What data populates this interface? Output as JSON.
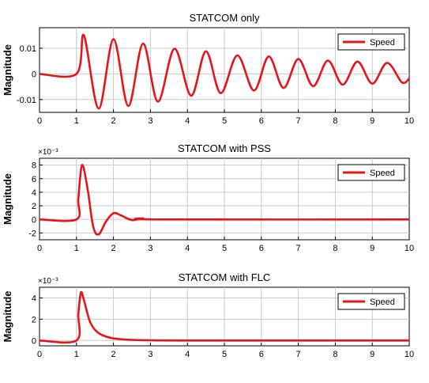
{
  "chart_data": [
    {
      "type": "line",
      "title": "STATCOM only",
      "ylabel": "Magnitude",
      "xlabel": "",
      "xlim": [
        0,
        10
      ],
      "ylim": [
        -0.015,
        0.018
      ],
      "xticks": [
        "0",
        "1",
        "2",
        "3",
        "4",
        "5",
        "6",
        "7",
        "8",
        "9",
        "10"
      ],
      "yticks": [
        {
          "value": 0.01,
          "label": "0.01"
        },
        {
          "value": 0,
          "label": "0"
        },
        {
          "value": -0.01,
          "label": "-0.01"
        }
      ],
      "multiplier": "",
      "grid": true,
      "legend": {
        "placement": "top-right",
        "entries": [
          "Speed"
        ]
      },
      "color": "#e8141b",
      "series": [
        {
          "name": "Speed",
          "x": [
            0,
            1.0,
            1.2,
            1.6,
            2.0,
            2.4,
            2.8,
            3.2,
            3.65,
            4.1,
            4.5,
            4.9,
            5.35,
            5.8,
            6.2,
            6.6,
            7.0,
            7.4,
            7.8,
            8.2,
            8.6,
            9.0,
            9.4,
            9.8,
            10.0
          ],
          "y": [
            0,
            0,
            0.015,
            -0.0135,
            0.0135,
            -0.0125,
            0.0118,
            -0.0108,
            0.0098,
            -0.0085,
            0.0088,
            -0.0075,
            0.0072,
            -0.0065,
            0.0068,
            -0.0055,
            0.0058,
            -0.0048,
            0.0052,
            -0.0042,
            0.0048,
            -0.0038,
            0.0043,
            -0.0033,
            -0.0018
          ]
        }
      ]
    },
    {
      "type": "line",
      "title": "STATCOM with PSS",
      "ylabel": "Magnitude",
      "xlabel": "",
      "xlim": [
        0,
        10
      ],
      "ylim": [
        -3,
        9
      ],
      "xticks": [
        "0",
        "1",
        "2",
        "3",
        "4",
        "5",
        "6",
        "7",
        "8",
        "9",
        "10"
      ],
      "yticks": [
        {
          "value": 8,
          "label": "8"
        },
        {
          "value": 6,
          "label": "6"
        },
        {
          "value": 4,
          "label": "4"
        },
        {
          "value": 2,
          "label": "2"
        },
        {
          "value": 0,
          "label": "0"
        },
        {
          "value": -2,
          "label": "-2"
        }
      ],
      "multiplier": "×10⁻³",
      "grid": true,
      "legend": {
        "placement": "top-right",
        "entries": [
          "Speed"
        ]
      },
      "color": "#e8141b",
      "series": [
        {
          "name": "Speed",
          "x": [
            0,
            1.0,
            1.05,
            1.15,
            1.3,
            1.45,
            1.6,
            1.8,
            2.0,
            2.2,
            2.5,
            2.8,
            3.2,
            10.0
          ],
          "y": [
            0,
            0,
            3,
            8,
            4.5,
            -1,
            -2.2,
            -0.3,
            0.9,
            0.6,
            -0.1,
            0.15,
            0,
            0
          ]
        }
      ]
    },
    {
      "type": "line",
      "title": "STATCOM with FLC",
      "ylabel": "Magnitude",
      "xlabel": "",
      "xlim": [
        0,
        10
      ],
      "ylim": [
        -0.5,
        5
      ],
      "xticks": [
        "0",
        "1",
        "2",
        "3",
        "4",
        "5",
        "6",
        "7",
        "8",
        "9",
        "10"
      ],
      "yticks": [
        {
          "value": 4,
          "label": "4"
        },
        {
          "value": 2,
          "label": "2"
        },
        {
          "value": 0,
          "label": "0"
        }
      ],
      "multiplier": "×10⁻³",
      "grid": true,
      "legend": {
        "placement": "top-right",
        "entries": [
          "Speed"
        ]
      },
      "color": "#e8141b",
      "series": [
        {
          "name": "Speed",
          "x": [
            0,
            1.0,
            1.05,
            1.12,
            1.2,
            1.35,
            1.5,
            1.7,
            2.0,
            2.5,
            3.0,
            4.0,
            10.0
          ],
          "y": [
            0,
            0,
            2.5,
            4.5,
            3.8,
            1.9,
            1.0,
            0.5,
            0.2,
            0.06,
            0.02,
            0,
            0
          ]
        }
      ]
    }
  ]
}
